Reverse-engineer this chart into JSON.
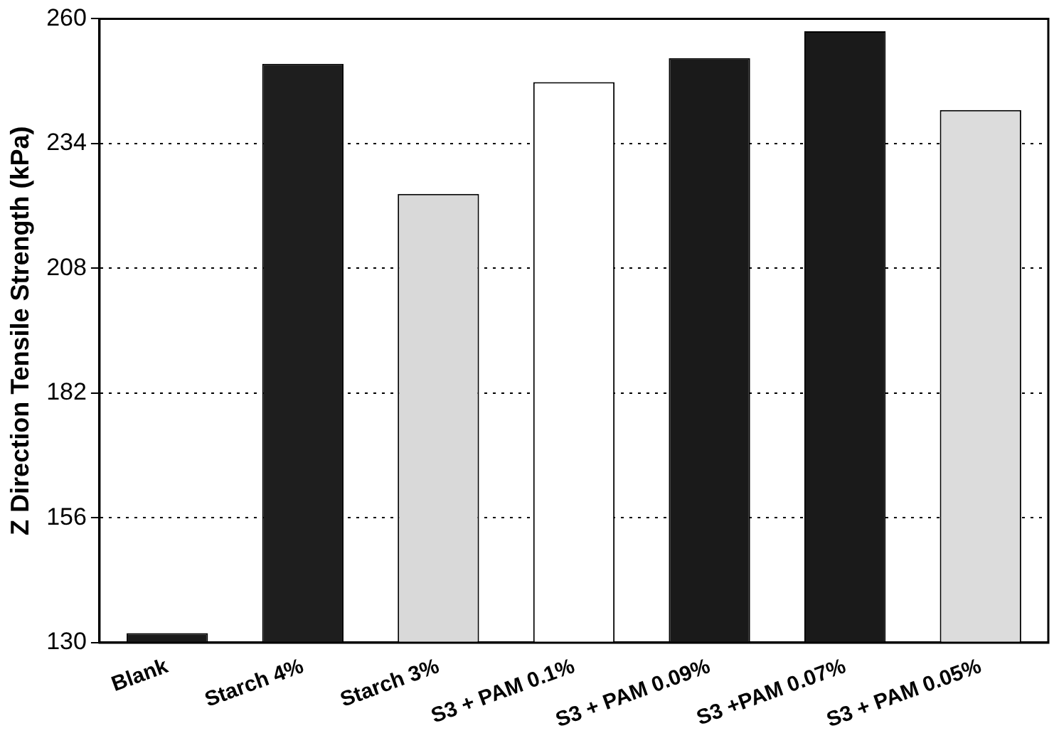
{
  "chart_data": {
    "type": "bar",
    "ylabel": "Z Direction Tensile Strength (kPa)",
    "categories": [
      "Blank",
      "Starch 4%",
      "Starch 3%",
      "S3 + PAM 0.1%",
      "S3 + PAM 0.09%",
      "S3 +PAM 0.07%",
      "S3 + PAM 0.05%"
    ],
    "values": [
      132,
      250.6,
      223.5,
      246.8,
      251.8,
      257.4,
      241
    ],
    "colors": [
      "#1a1a1a",
      "#1e1e1e",
      "#d9d9d9",
      "#ffffff",
      "#1a1a1a",
      "#1a1a1a",
      "#dcdcdc"
    ],
    "ylim": [
      130,
      260
    ],
    "yticks": [
      130,
      156,
      182,
      208,
      234,
      260
    ],
    "grid": "y",
    "legend": false
  }
}
